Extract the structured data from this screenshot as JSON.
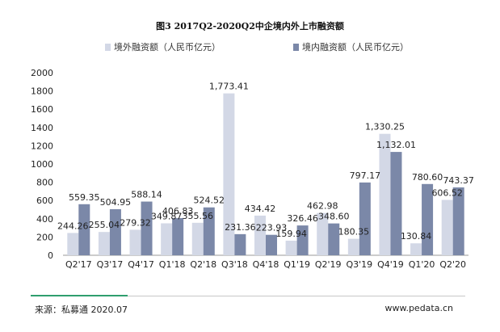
{
  "title": "图3 2017Q2-2020Q2中企境内外上市融资额",
  "colors": {
    "overseas": "#d3d8e6",
    "domestic": "#7b88a8"
  },
  "chart_data": {
    "type": "bar",
    "categories": [
      "Q2'17",
      "Q3'17",
      "Q4'17",
      "Q1'18",
      "Q2'18",
      "Q3'18",
      "Q4'18",
      "Q1'19",
      "Q2'19",
      "Q3'19",
      "Q4'19",
      "Q1'20",
      "Q2'20"
    ],
    "series": [
      {
        "name": "境外融资额（人民币亿元）",
        "values": [
          244.26,
          255.04,
          279.32,
          349.87,
          355.56,
          1773.41,
          434.42,
          159.94,
          462.98,
          180.35,
          1330.25,
          130.84,
          606.52
        ]
      },
      {
        "name": "境内融资额（人民币亿元）",
        "values": [
          559.35,
          504.95,
          588.14,
          406.83,
          524.52,
          231.36,
          223.93,
          326.46,
          348.6,
          797.17,
          1132.01,
          780.6,
          743.37
        ]
      }
    ],
    "labels": [
      [
        "244.26",
        "255.04",
        "279.32",
        "349.87",
        "355.56",
        "1,773.41",
        "434.42",
        "159.94",
        "462.98",
        "180.35",
        "1,330.25",
        "130.84",
        "606.52"
      ],
      [
        "559.35",
        "504.95",
        "588.14",
        "406.83",
        "524.52",
        "231.36",
        "223.93",
        "326.46",
        "348.60",
        "797.17",
        "1,132.01",
        "780.60",
        "743.37"
      ]
    ],
    "yticks": [
      0,
      200,
      400,
      600,
      800,
      1000,
      1200,
      1400,
      1600,
      1800,
      2000
    ],
    "ylim": [
      0,
      2000
    ],
    "legend_position": "top"
  },
  "footer": {
    "source": "来源：私募通 2020.07",
    "website": "www.pedata.cn"
  }
}
